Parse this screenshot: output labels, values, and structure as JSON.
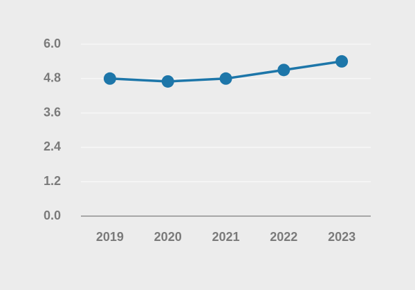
{
  "chart_data": {
    "type": "line",
    "categories": [
      "2019",
      "2020",
      "2021",
      "2022",
      "2023"
    ],
    "series": [
      {
        "color": "#1d76a9",
        "values": [
          4.8,
          4.7,
          4.8,
          5.1,
          5.4
        ]
      }
    ],
    "ylim": [
      0,
      6
    ],
    "yticks": [
      {
        "value": 0,
        "label": "0.0"
      },
      1.2,
      2.4,
      3.6,
      4.8,
      {
        "value": 6,
        "label": "6.0"
      }
    ],
    "grid": true
  }
}
